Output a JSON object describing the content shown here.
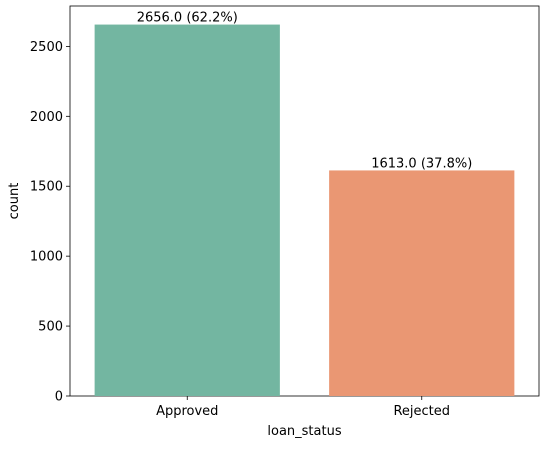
{
  "chart_data": {
    "type": "bar",
    "xlabel": "loan_status",
    "ylabel": "count",
    "categories": [
      "Approved",
      "Rejected"
    ],
    "values": [
      2656,
      1613
    ],
    "data_labels": [
      "2656.0 (62.2%)",
      "1613.0 (37.8%)"
    ],
    "colors": [
      "#73b6a1",
      "#ea9773"
    ],
    "ylim": [
      0,
      2788.8
    ],
    "yticks": [
      0,
      500,
      1000,
      1500,
      2000,
      2500
    ],
    "ytick_labels": [
      "0",
      "500",
      "1000",
      "1500",
      "2000",
      "2500"
    ],
    "grid": false,
    "legend": "none"
  }
}
